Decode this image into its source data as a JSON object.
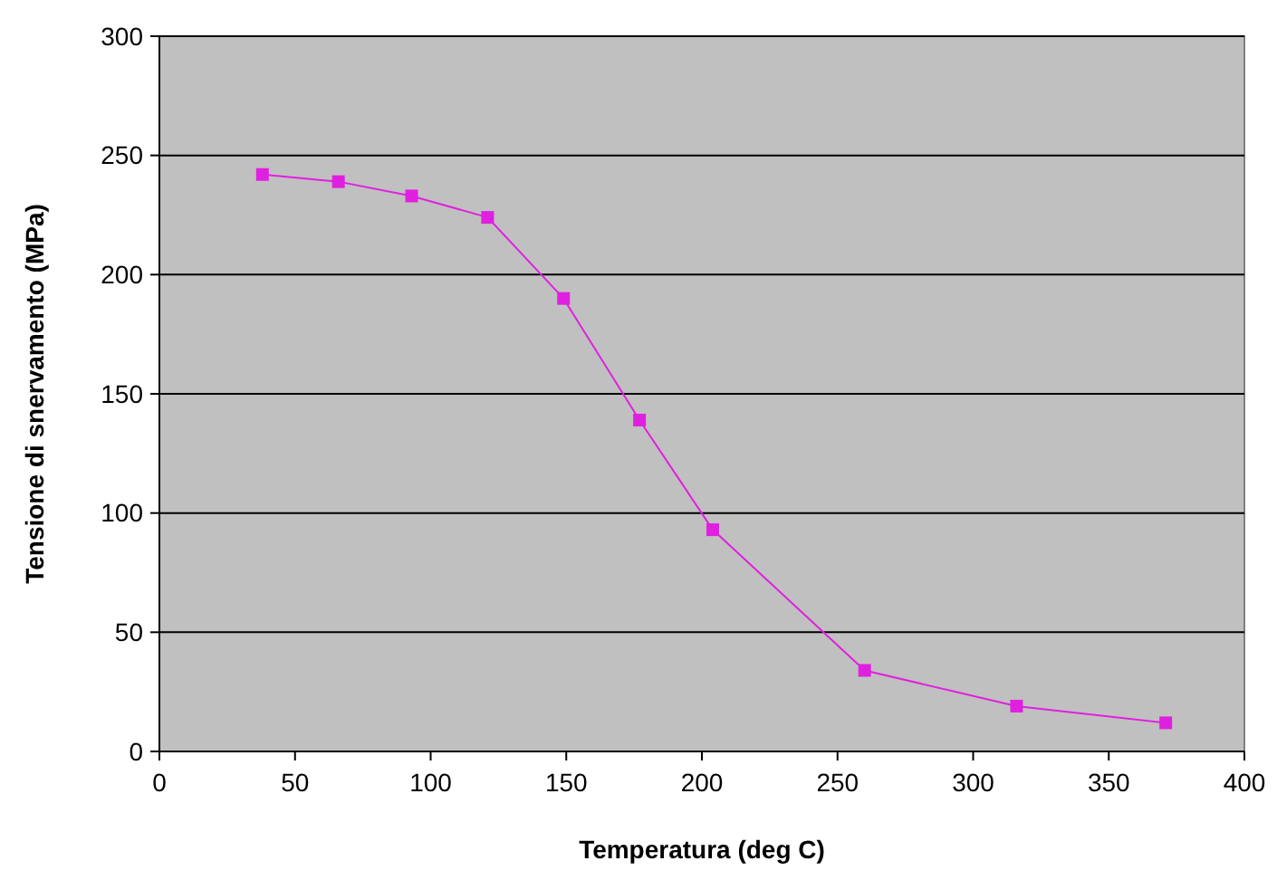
{
  "chart_data": {
    "type": "line",
    "xlabel": "Temperatura (deg C)",
    "ylabel": "Tensione di snervamento (MPa)",
    "x": [
      38,
      66,
      93,
      121,
      149,
      177,
      204,
      260,
      316,
      371
    ],
    "series": [
      {
        "color": "#e020e0",
        "values": [
          242,
          239,
          233,
          224,
          190,
          139,
          93,
          34,
          19,
          12
        ]
      }
    ],
    "xlim": [
      0,
      400
    ],
    "xticks": [
      0,
      50,
      100,
      150,
      200,
      250,
      300,
      350,
      400
    ],
    "ylim": [
      0,
      300
    ],
    "yticks": [
      0,
      50,
      100,
      150,
      200,
      250,
      300
    ],
    "grid": "y",
    "marker": "square",
    "line_style": "solid"
  }
}
